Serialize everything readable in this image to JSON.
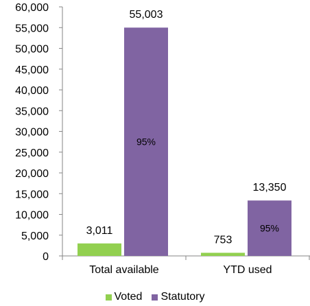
{
  "chart_data": {
    "type": "bar",
    "categories": [
      "Total available",
      "YTD used"
    ],
    "series": [
      {
        "name": "Voted",
        "values": [
          3011,
          753
        ],
        "labels": [
          "3,011",
          "753"
        ],
        "color": "#92d050"
      },
      {
        "name": "Statutory",
        "values": [
          55003,
          13350
        ],
        "labels": [
          "55,003",
          "13,350"
        ],
        "color": "#8064a2"
      }
    ],
    "inner_labels": [
      "95%",
      "95%"
    ],
    "ylim": [
      0,
      60000
    ],
    "yticks": [
      "0",
      "5,000",
      "10,000",
      "15,000",
      "20,000",
      "25,000",
      "30,000",
      "35,000",
      "40,000",
      "45,000",
      "50,000",
      "55,000",
      "60,000"
    ],
    "legend_position": "bottom",
    "grid": false
  }
}
